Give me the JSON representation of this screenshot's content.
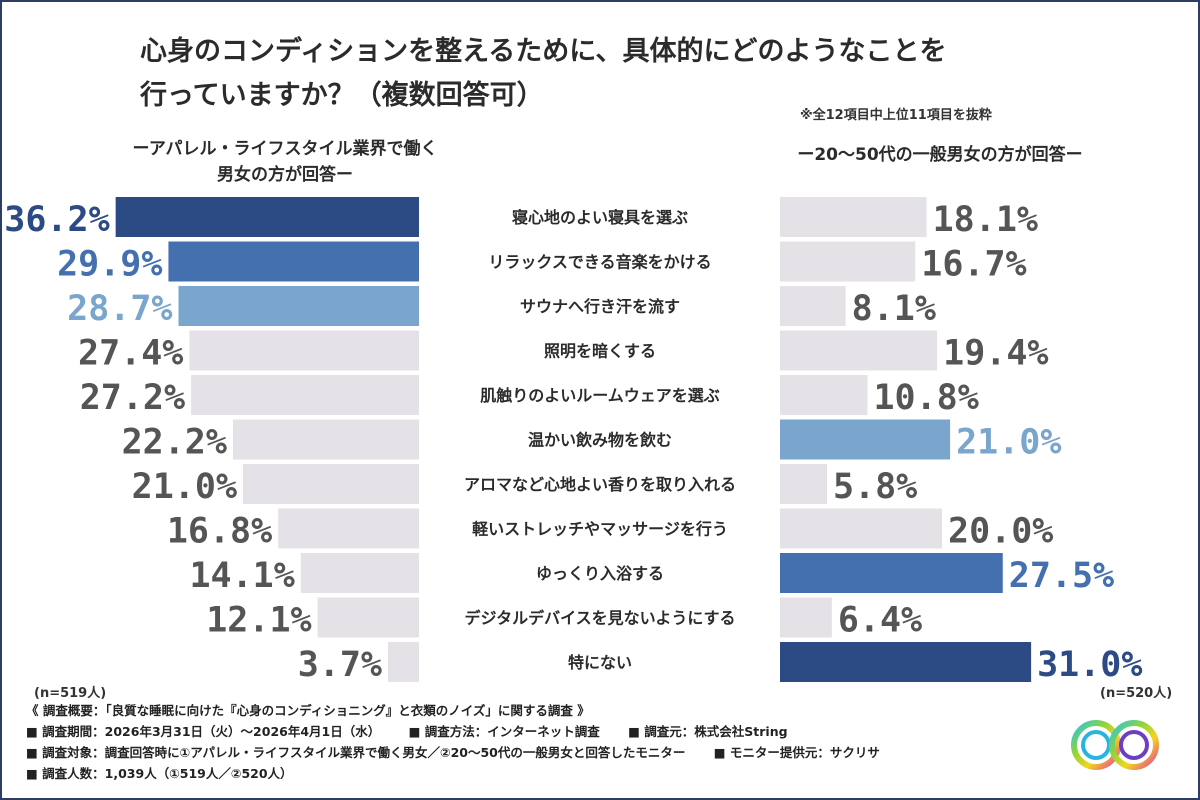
{
  "title_line1": "心身のコンディションを整えるために、具体的にどのようなことを",
  "title_line2": "行っていますか？（複数回答可）",
  "note": "※全12項目中上位11項目を抜粋",
  "left_group_line1": "ーアパレル・ライフスタイル業界で働く",
  "left_group_line2": "男女の方が回答ー",
  "right_group": "ー20〜50代の一般男女の方が回答ー",
  "n_left": "(n=519人)",
  "n_right": "(n=520人)",
  "footer": {
    "line1": "《 調査概要：「良質な睡眠に向けた『心身のコンディショニング』と衣類のノイズ」に関する調査 》",
    "period": "■ 調査期間：2026年3月31日（火）〜2026年4月1日（水）",
    "method": "■ 調査方法：インターネット調査",
    "source": "■ 調査元：株式会社String",
    "target": "■ 調査対象：調査回答時に①アパレル・ライフスタイル業界で働く男女／②20〜50代の一般男女と回答したモニター",
    "provider": "■ モニター提供元：サクリサ",
    "count": "■ 調査人数：1,039人（①519人／②520人）"
  },
  "colors": {
    "gray": "#e4e2e6",
    "dark_navy": "#2c4a84",
    "mid_blue": "#4470b0",
    "light_blue": "#7aa5cc",
    "label_gray": "#555555"
  },
  "chart_data": {
    "type": "bar",
    "orientation": "horizontal-butterfly",
    "categories": [
      "寝心地のよい寝具を選ぶ",
      "リラックスできる音楽をかける",
      "サウナへ行き汗を流す",
      "照明を暗くする",
      "肌触りのよいルームウェアを選ぶ",
      "温かい飲み物を飲む",
      "アロマなど心地よい香りを取り入れる",
      "軽いストレッチやマッサージを行う",
      "ゆっくり入浴する",
      "デジタルデバイスを見ないようにする",
      "特にない"
    ],
    "series": [
      {
        "values": [
          36.2,
          29.9,
          28.7,
          27.4,
          27.2,
          22.2,
          21.0,
          16.8,
          14.1,
          12.1,
          3.7
        ],
        "labels": [
          "36.2%",
          "29.9%",
          "28.7%",
          "27.4%",
          "27.2%",
          "22.2%",
          "21.0%",
          "16.8%",
          "14.1%",
          "12.1%",
          "3.7%"
        ],
        "highlight": [
          "dark_navy",
          "mid_blue",
          "light_blue",
          null,
          null,
          null,
          null,
          null,
          null,
          null,
          null
        ]
      },
      {
        "values": [
          18.1,
          16.7,
          8.1,
          19.4,
          10.8,
          21.0,
          5.8,
          20.0,
          27.5,
          6.4,
          31.0
        ],
        "labels": [
          "18.1%",
          "16.7%",
          "8.1%",
          "19.4%",
          "10.8%",
          "21.0%",
          "5.8%",
          "20.0%",
          "27.5%",
          "6.4%",
          "31.0%"
        ],
        "highlight": [
          null,
          null,
          null,
          null,
          null,
          "light_blue",
          null,
          null,
          "mid_blue",
          null,
          "dark_navy"
        ]
      }
    ],
    "unit": "%"
  }
}
